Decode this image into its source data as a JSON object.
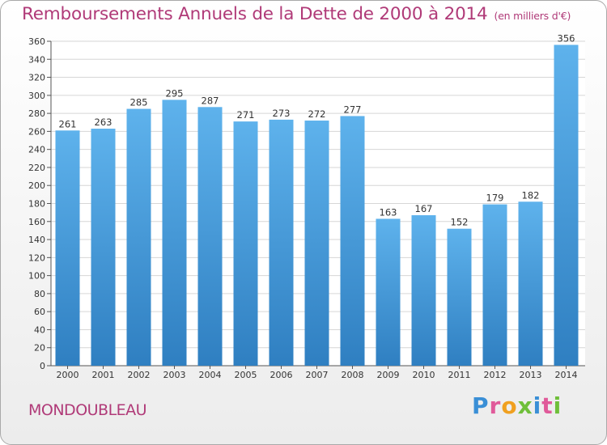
{
  "title": "Remboursements Annuels de la Dette de 2000 à 2014",
  "unit": "(en milliers d'€)",
  "commune": "MONDOUBLEAU",
  "logo": {
    "letters": [
      "P",
      "r",
      "o",
      "x",
      "i",
      "t",
      "i"
    ],
    "colors": [
      "#3a8fd6",
      "#e05a9a",
      "#f0a020",
      "#6fbf3a",
      "#3a8fd6",
      "#e05a9a",
      "#6fbf3a"
    ]
  },
  "colors": {
    "bar_top": "#5eb2ec",
    "bar_bottom": "#2f7fc1",
    "title": "#b03a78",
    "grid": "#d6d6d6"
  },
  "chart_data": {
    "type": "bar",
    "title": "Remboursements Annuels de la Dette de 2000 à 2014",
    "xlabel": "",
    "ylabel": "",
    "ylim": [
      0,
      360
    ],
    "yticks": [
      0,
      20,
      40,
      60,
      80,
      100,
      120,
      140,
      160,
      180,
      200,
      220,
      240,
      260,
      280,
      300,
      320,
      340,
      360
    ],
    "categories": [
      "2000",
      "2001",
      "2002",
      "2003",
      "2004",
      "2005",
      "2006",
      "2007",
      "2008",
      "2009",
      "2010",
      "2011",
      "2012",
      "2013",
      "2014"
    ],
    "values": [
      261,
      263,
      285,
      295,
      287,
      271,
      273,
      272,
      277,
      163,
      167,
      152,
      179,
      182,
      356
    ],
    "grid": true
  }
}
